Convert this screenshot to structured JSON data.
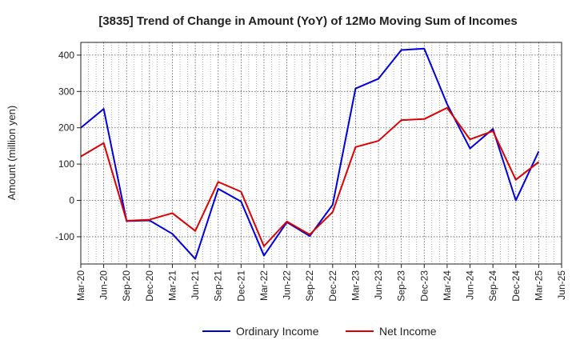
{
  "chart_data": {
    "type": "line",
    "title": "[3835]  Trend of Change in Amount (YoY) of 12Mo Moving Sum of Incomes",
    "xlabel": "",
    "ylabel": "Amount (million yen)",
    "ylim": [
      -175,
      435
    ],
    "yticks": [
      -100,
      0,
      100,
      200,
      300,
      400
    ],
    "grid": true,
    "legend": "bottom",
    "x": [
      "Mar-20",
      "Jun-20",
      "Sep-20",
      "Dec-20",
      "Mar-21",
      "Jun-21",
      "Sep-21",
      "Dec-21",
      "Mar-22",
      "Jun-22",
      "Sep-22",
      "Dec-22",
      "Mar-23",
      "Jun-23",
      "Sep-23",
      "Dec-23",
      "Mar-24",
      "Jun-24",
      "Sep-24",
      "Dec-24",
      "Mar-25",
      "Jun-25"
    ],
    "series": [
      {
        "name": "Ordinary Income",
        "color": "#0000dd",
        "values": [
          200,
          252,
          -57,
          -55,
          -92,
          -161,
          32,
          -3,
          -152,
          -60,
          -98,
          -12,
          308,
          335,
          414,
          418,
          265,
          143,
          197,
          0,
          135,
          null
        ]
      },
      {
        "name": "Net Income",
        "color": "#dd0000",
        "values": [
          121,
          158,
          -56,
          -53,
          -35,
          -84,
          51,
          24,
          -126,
          -58,
          -94,
          -32,
          147,
          164,
          221,
          224,
          255,
          168,
          191,
          57,
          106,
          null
        ]
      }
    ]
  }
}
